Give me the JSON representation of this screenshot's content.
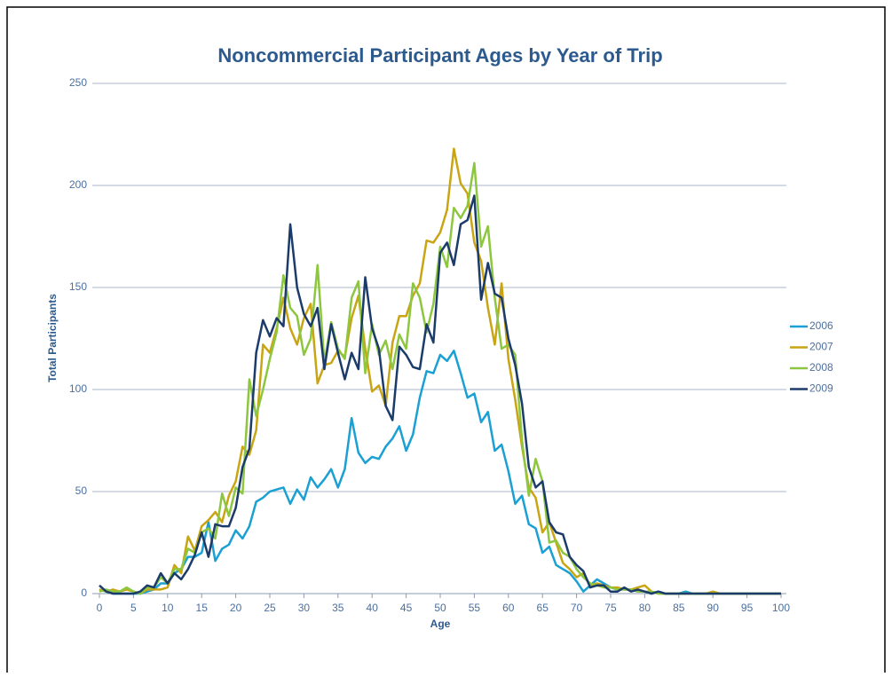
{
  "chart_data": {
    "type": "line",
    "title": "Noncommercial Participant Ages by Year of Trip",
    "x_label": "Age",
    "y_label": "Total Participants",
    "x": [
      0,
      1,
      2,
      3,
      4,
      5,
      6,
      7,
      8,
      9,
      10,
      11,
      12,
      13,
      14,
      15,
      16,
      17,
      18,
      19,
      20,
      21,
      22,
      23,
      24,
      25,
      26,
      27,
      28,
      29,
      30,
      31,
      32,
      33,
      34,
      35,
      36,
      37,
      38,
      39,
      40,
      41,
      42,
      43,
      44,
      45,
      46,
      47,
      48,
      49,
      50,
      51,
      52,
      53,
      54,
      55,
      56,
      57,
      58,
      59,
      60,
      61,
      62,
      63,
      64,
      65,
      66,
      67,
      68,
      69,
      70,
      71,
      72,
      73,
      74,
      75,
      76,
      77,
      78,
      79,
      80,
      81,
      82,
      83,
      84,
      85,
      86,
      87,
      88,
      89,
      90,
      91,
      92,
      93,
      94,
      95,
      96,
      97,
      98,
      99,
      100
    ],
    "series": [
      {
        "name": "2006",
        "color": "#1aa0d2",
        "values": [
          2,
          1,
          0,
          0,
          0,
          0,
          0,
          1,
          2,
          5,
          5,
          10,
          12,
          18,
          18,
          20,
          35,
          16,
          22,
          24,
          31,
          27,
          33,
          45,
          47,
          50,
          51,
          52,
          44,
          51,
          46,
          57,
          52,
          56,
          61,
          52,
          61,
          86,
          69,
          64,
          67,
          66,
          72,
          76,
          82,
          70,
          78,
          96,
          109,
          108,
          117,
          114,
          119,
          108,
          96,
          98,
          84,
          89,
          70,
          73,
          60,
          44,
          48,
          34,
          32,
          20,
          23,
          14,
          12,
          10,
          6,
          1,
          4,
          7,
          5,
          3,
          2,
          2,
          2,
          1,
          1,
          0,
          1,
          0,
          0,
          0,
          1,
          0,
          0,
          0,
          0,
          0,
          0,
          0,
          0,
          0,
          0,
          0,
          0,
          0,
          0
        ]
      },
      {
        "name": "2007",
        "color": "#c9a514",
        "values": [
          2,
          1,
          2,
          1,
          2,
          1,
          0,
          2,
          2,
          2,
          3,
          14,
          10,
          28,
          21,
          33,
          36,
          40,
          35,
          48,
          55,
          72,
          68,
          80,
          122,
          118,
          130,
          145,
          130,
          122,
          135,
          142,
          103,
          112,
          113,
          119,
          116,
          135,
          146,
          120,
          99,
          102,
          92,
          123,
          136,
          136,
          146,
          152,
          173,
          172,
          177,
          188,
          218,
          201,
          196,
          172,
          163,
          140,
          122,
          152,
          115,
          95,
          72,
          52,
          47,
          30,
          35,
          25,
          15,
          12,
          8,
          10,
          4,
          5,
          4,
          3,
          3,
          2,
          2,
          3,
          4,
          1,
          0,
          0,
          0,
          0,
          0,
          0,
          0,
          0,
          1,
          0,
          0,
          0,
          0,
          0,
          0,
          0,
          0,
          0,
          0
        ]
      },
      {
        "name": "2008",
        "color": "#8dc63f",
        "values": [
          1,
          2,
          1,
          1,
          3,
          1,
          0,
          3,
          3,
          8,
          5,
          12,
          12,
          22,
          20,
          30,
          32,
          27,
          49,
          38,
          52,
          49,
          105,
          87,
          100,
          115,
          128,
          156,
          140,
          136,
          117,
          125,
          161,
          113,
          133,
          120,
          115,
          145,
          153,
          108,
          132,
          117,
          124,
          110,
          127,
          120,
          152,
          145,
          128,
          142,
          170,
          160,
          189,
          184,
          190,
          211,
          170,
          180,
          145,
          120,
          122,
          117,
          75,
          48,
          66,
          55,
          25,
          26,
          20,
          18,
          12,
          8,
          5,
          4,
          3,
          3,
          2,
          2,
          2,
          1,
          1,
          1,
          0,
          0,
          0,
          0,
          0,
          0,
          0,
          0,
          0,
          0,
          0,
          0,
          0,
          0,
          0,
          0,
          0,
          0,
          0
        ]
      },
      {
        "name": "2009",
        "color": "#1b3c6b",
        "values": [
          4,
          1,
          0,
          0,
          0,
          0,
          1,
          4,
          3,
          10,
          5,
          10,
          7,
          12,
          19,
          30,
          18,
          34,
          33,
          33,
          42,
          62,
          71,
          118,
          134,
          126,
          135,
          131,
          181,
          150,
          137,
          131,
          140,
          110,
          132,
          118,
          105,
          118,
          110,
          155,
          130,
          120,
          92,
          85,
          121,
          117,
          111,
          110,
          132,
          123,
          167,
          172,
          161,
          181,
          183,
          195,
          144,
          162,
          147,
          145,
          125,
          112,
          93,
          62,
          52,
          55,
          35,
          30,
          29,
          18,
          14,
          11,
          3,
          4,
          4,
          1,
          1,
          3,
          1,
          2,
          1,
          0,
          1,
          0,
          0,
          0,
          0,
          0,
          0,
          0,
          0,
          0,
          0,
          0,
          0,
          0,
          0,
          0,
          0,
          0,
          0
        ]
      }
    ],
    "xlim": [
      0,
      100
    ],
    "xticks": [
      0,
      5,
      10,
      15,
      20,
      25,
      30,
      35,
      40,
      45,
      50,
      55,
      60,
      65,
      70,
      75,
      80,
      85,
      90,
      95,
      100
    ],
    "ylim": [
      0,
      250
    ],
    "yticks": [
      0,
      50,
      100,
      150,
      200,
      250
    ],
    "grid": true,
    "legend": "right"
  }
}
